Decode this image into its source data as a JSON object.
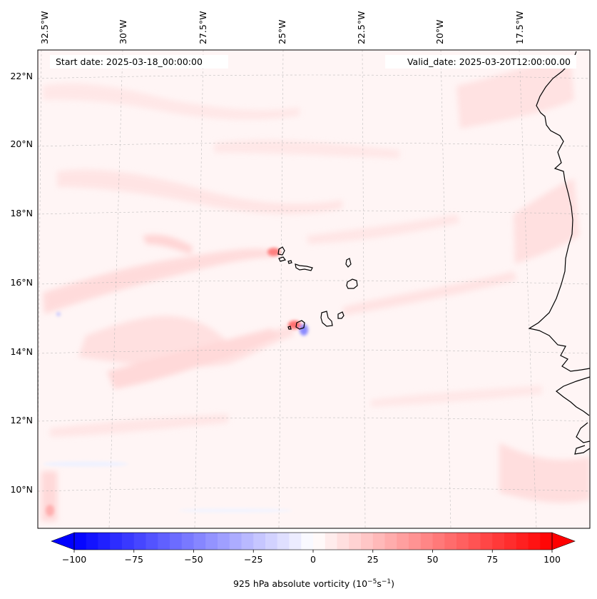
{
  "header": {
    "start_date": "Start date: 2025-03-18_00:00:00",
    "valid_date": "Valid_date: 2025-03-20T12:00:00.00"
  },
  "longitude_labels": [
    "32.5°W",
    "30°W",
    "27.5°W",
    "25°W",
    "22.5°W",
    "20°W",
    "17.5°W"
  ],
  "latitude_labels": [
    "22°N",
    "20°N",
    "18°N",
    "16°N",
    "14°N",
    "12°N",
    "10°N"
  ],
  "colorbar": {
    "ticks": [
      "−100",
      "−75",
      "−50",
      "−25",
      "0",
      "25",
      "50",
      "75",
      "100"
    ],
    "tick_values": [
      -100,
      -75,
      -50,
      -25,
      0,
      25,
      50,
      75,
      100
    ],
    "label_main": "925 hPa absolute vorticity (10",
    "label_exp1": "−5",
    "label_mid": "s",
    "label_exp2": "−1",
    "label_end": ")",
    "min": -100,
    "max": 100,
    "step": 5,
    "low_color": "#0000ff",
    "high_color": "#ff0000",
    "mid_color": "#ffffff"
  },
  "colors": {
    "coastline": "#000000",
    "gridline": "#b0b0b0",
    "background_field": "#fff5f5"
  }
}
